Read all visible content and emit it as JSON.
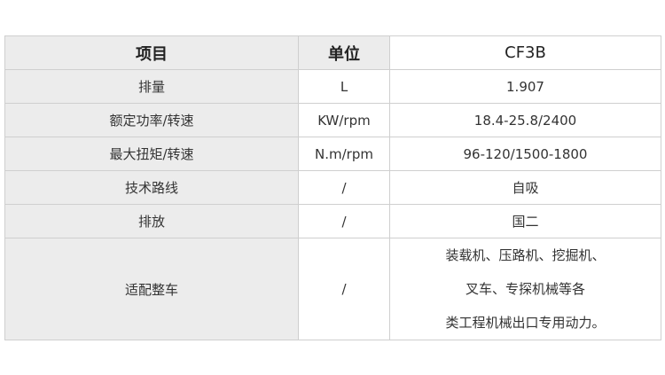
{
  "table": {
    "header": [
      "项目",
      "单位",
      "CF3B"
    ],
    "rows": [
      [
        "排量",
        "L",
        "1.907"
      ],
      [
        "额定功率/转速",
        "KW/rpm",
        "18.4-25.8/2400"
      ],
      [
        "最大扭矩/转速",
        "N.m/rpm",
        "96-120/1500-1800"
      ],
      [
        "技术路线",
        "/",
        "自吸"
      ],
      [
        "排放",
        "/",
        "国二"
      ],
      [
        "适配整车",
        "/",
        [
          "装载机、压路机、挖掘机、",
          "叉车、专探机械等各",
          "类工程机械出口专用动力。"
        ]
      ]
    ]
  }
}
